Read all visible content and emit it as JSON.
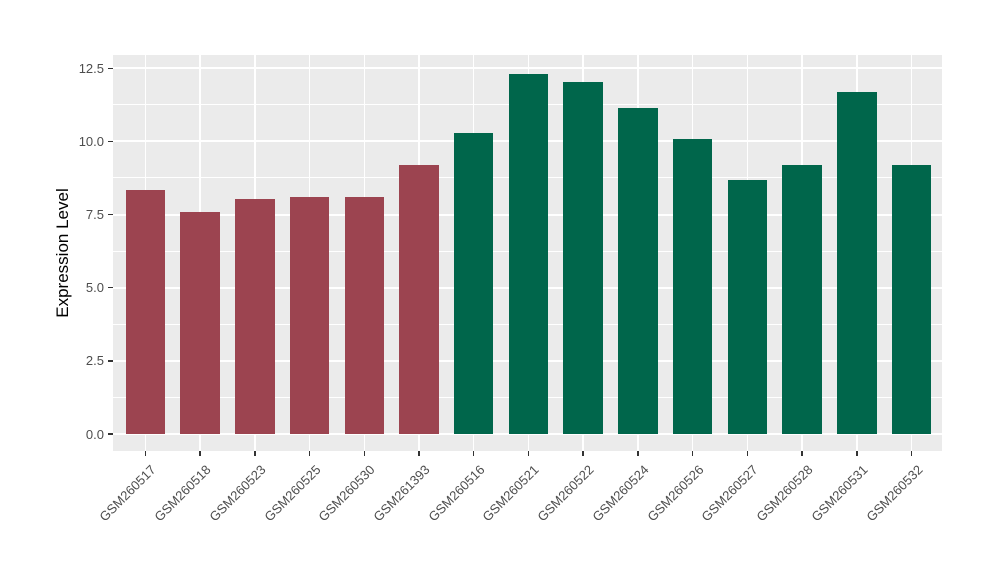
{
  "chart_data": {
    "type": "bar",
    "title": "",
    "xlabel": "",
    "ylabel": "Expression Level",
    "ylim": [
      0,
      12.95
    ],
    "yticks": [
      0,
      2.5,
      5,
      7.5,
      10,
      12.5
    ],
    "ytick_labels": [
      "0.0",
      "2.5",
      "5.0",
      "7.5",
      "10.0",
      "12.5"
    ],
    "y_minor_ticks": [
      1.25,
      3.75,
      6.25,
      8.75,
      11.25
    ],
    "categories": [
      "GSM260517",
      "GSM260518",
      "GSM260523",
      "GSM260525",
      "GSM260530",
      "GSM261393",
      "GSM260516",
      "GSM260521",
      "GSM260522",
      "GSM260524",
      "GSM260526",
      "GSM260527",
      "GSM260528",
      "GSM260531",
      "GSM260532"
    ],
    "values": [
      8.35,
      7.6,
      8.02,
      8.1,
      8.1,
      9.2,
      10.28,
      12.3,
      12.02,
      11.15,
      10.07,
      8.68,
      9.2,
      11.68,
      9.2
    ],
    "bar_group_index": [
      0,
      0,
      0,
      0,
      0,
      0,
      1,
      1,
      1,
      1,
      1,
      1,
      1,
      1,
      1
    ],
    "groups": [
      {
        "name": "group-1",
        "color": "#9C4450"
      },
      {
        "name": "group-2",
        "color": "#00664B"
      }
    ],
    "legend_position": "none",
    "grid": true,
    "style": {
      "panel_bg": "#EBEBEB",
      "grid_color": "#FFFFFF",
      "tick_color": "#333333",
      "tick_label_color": "#4D4D4D",
      "axis_title_color": "#000000",
      "outer_bg": "#FFFFFF"
    }
  }
}
